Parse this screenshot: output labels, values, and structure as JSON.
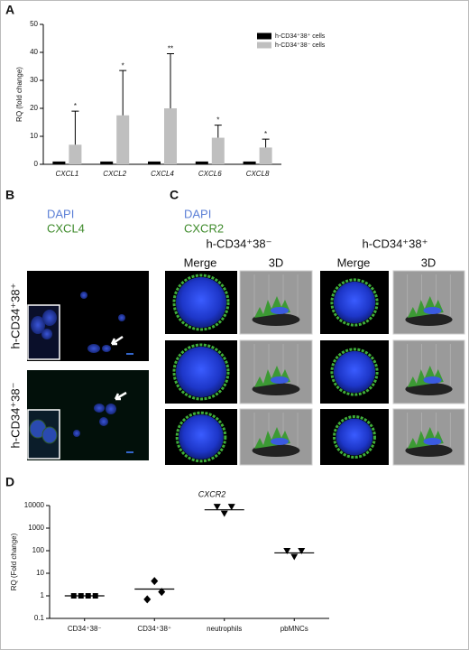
{
  "chart_data": [
    {
      "type": "bar",
      "panel": "A",
      "ylabel": "RQ (fold change)",
      "categories": [
        "CXCL1",
        "CXCL2",
        "CXCL4",
        "CXCL6",
        "CXCL8"
      ],
      "series": [
        {
          "name": "h-CD34⁺38⁺ cells",
          "color": "#000000",
          "values": [
            1,
            1,
            1,
            1,
            1
          ]
        },
        {
          "name": "h-CD34⁺38⁻ cells",
          "color": "#bfbfbf",
          "values": [
            7,
            17.5,
            20,
            9.5,
            6
          ],
          "errors": [
            12,
            16,
            19.5,
            4.5,
            3
          ]
        }
      ],
      "annotations": [
        "*",
        "*",
        "**",
        "*",
        "*"
      ],
      "ylim": [
        0,
        50
      ],
      "yticks": [
        0,
        10,
        20,
        30,
        40,
        50
      ],
      "legend": "top-right"
    },
    {
      "type": "dot",
      "panel": "D",
      "title": "CXCR2",
      "ylabel": "RQ (Fold change)",
      "log_scale": true,
      "categories": [
        "CD34⁺38⁻",
        "CD34⁺38⁺",
        "neutrophils",
        "pbMNCs"
      ],
      "groups": [
        {
          "marker": "square",
          "points": [
            1,
            1,
            1,
            1
          ],
          "median": 1
        },
        {
          "marker": "diamond",
          "points": [
            0.7,
            4.5,
            1.5
          ],
          "median": 2
        },
        {
          "marker": "triangle-down",
          "points": [
            9000,
            4500,
            9000
          ],
          "median": 6500
        },
        {
          "marker": "triangle-down",
          "points": [
            100,
            55,
            100
          ],
          "median": 80
        }
      ],
      "color": "#000000",
      "ylim": [
        0.1,
        10000
      ],
      "yticks": [
        0.1,
        1,
        10,
        100,
        1000,
        10000
      ]
    }
  ],
  "panels": {
    "B": {
      "label": "B",
      "stains": [
        "DAPI",
        "CXCL4"
      ],
      "rows": [
        "h-CD34⁺38⁺",
        "h-CD34⁺38⁻"
      ]
    },
    "C": {
      "label": "C",
      "stains": [
        "DAPI",
        "CXCR2"
      ],
      "groups": [
        {
          "title": "h-CD34⁺38⁻",
          "columns": [
            "Merge",
            "3D"
          ]
        },
        {
          "title": "h-CD34⁺38⁺",
          "columns": [
            "Merge",
            "3D"
          ]
        }
      ]
    }
  }
}
